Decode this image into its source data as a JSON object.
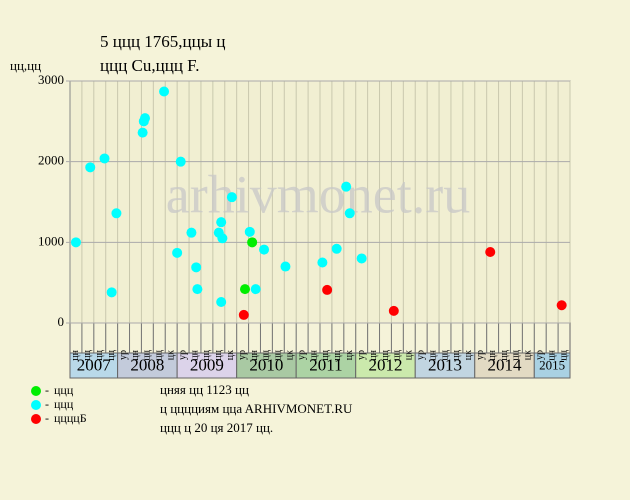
{
  "chart_data": {
    "type": "scatter",
    "title": "5 ццц 1765,ццы ц",
    "subtitle": "ццц Cu,ццц F.",
    "y_label": "цц,цц",
    "watermark": "arhivmonet.ru",
    "ylim": [
      0,
      3000
    ],
    "yticks": [
      0,
      1000,
      2000,
      3000
    ],
    "xlim": [
      0,
      42
    ],
    "grid": true,
    "periods": [
      {
        "year": "2007",
        "color": "#b9d9e9",
        "columns": [
          "цн",
          "цц",
          "цц",
          "цц"
        ]
      },
      {
        "year": "2008",
        "color": "#c3cbdb",
        "columns": [
          "ур",
          "цн",
          "цц",
          "цц",
          "цк"
        ]
      },
      {
        "year": "2009",
        "color": "#dcd3ea",
        "columns": [
          "ур",
          "цн",
          "цц",
          "цц",
          "цк"
        ]
      },
      {
        "year": "2010",
        "color": "#a9c9a3",
        "columns": [
          "ур",
          "цн",
          "цц",
          "цц",
          "цк"
        ]
      },
      {
        "year": "2011",
        "color": "#acd3a4",
        "columns": [
          "ур",
          "цн",
          "цц",
          "цц",
          "цк"
        ]
      },
      {
        "year": "2012",
        "color": "#cbe9ac",
        "columns": [
          "ур",
          "цн",
          "цц",
          "цц",
          "цк"
        ]
      },
      {
        "year": "2013",
        "color": "#c1d5e1",
        "columns": [
          "ур",
          "цн",
          "цц",
          "цц",
          "цк"
        ]
      },
      {
        "year": "2014",
        "color": "#e2dac3",
        "columns": [
          "ур",
          "цн",
          "цц",
          "цц",
          "цк"
        ]
      },
      {
        "year": "2015",
        "color": "#a9d1e3",
        "columns": [
          "ур",
          "цн",
          "цц"
        ]
      }
    ],
    "series": [
      {
        "name": "ццц",
        "color": "#00ee00",
        "x": [
          14.7,
          15.3
        ],
        "values": [
          420,
          1000
        ]
      },
      {
        "name": "ццц",
        "color": "#00ffff",
        "x": [
          0.5,
          1.7,
          2.9,
          3.5,
          3.9,
          6.1,
          6.2,
          6.3,
          7.9,
          9.0,
          9.3,
          10.2,
          10.6,
          10.7,
          12.5,
          12.7,
          12.8,
          12.7,
          13.6,
          15.1,
          15.6,
          16.3,
          18.1,
          21.2,
          22.4,
          23.2,
          23.5,
          24.5
        ],
        "values": [
          1000,
          1930,
          2040,
          380,
          1360,
          2360,
          2500,
          2540,
          2870,
          870,
          2000,
          1120,
          690,
          420,
          1120,
          1250,
          1050,
          260,
          1560,
          1130,
          420,
          910,
          700,
          750,
          920,
          1690,
          1360,
          800
        ]
      },
      {
        "name": "ццццБ",
        "color": "#ff0000",
        "x": [
          14.6,
          21.6,
          27.2,
          35.3,
          41.3
        ],
        "values": [
          100,
          410,
          150,
          880,
          220
        ]
      }
    ],
    "notes": [
      "цняя цц 1123 цц",
      "ц цццциям ццa ARHIVMONET.RU",
      "ццц ц 20 ця 2017 цц."
    ]
  }
}
